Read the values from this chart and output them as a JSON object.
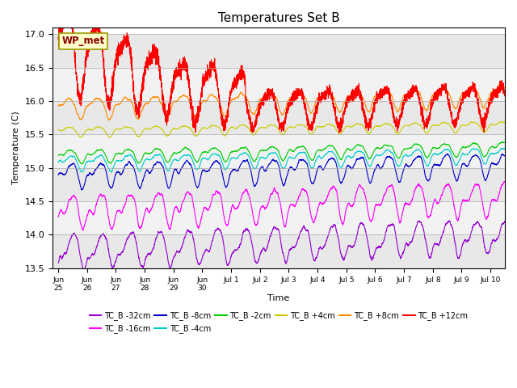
{
  "title": "Temperatures Set B",
  "xlabel": "Time",
  "ylabel": "Temperature (C)",
  "ylim": [
    13.5,
    17.1
  ],
  "annotation": "WP_met",
  "annotation_color": "#8B0000",
  "annotation_bg": "#FFFFCC",
  "series": [
    {
      "label": "TC_B -32cm",
      "color": "#9400D3",
      "base": 13.75,
      "amplitude": 0.22,
      "trend": 0.22,
      "phase": -1.5,
      "amp2": 0.08,
      "phase2": 0.5
    },
    {
      "label": "TC_B -16cm",
      "color": "#FF00FF",
      "base": 14.35,
      "amplitude": 0.2,
      "trend": 0.2,
      "phase": -1.2,
      "amp2": 0.1,
      "phase2": 0.8
    },
    {
      "label": "TC_B -8cm",
      "color": "#0000CD",
      "base": 14.9,
      "amplitude": 0.14,
      "trend": 0.15,
      "phase": -0.9,
      "amp2": 0.08,
      "phase2": 1.0
    },
    {
      "label": "TC_B -4cm",
      "color": "#00CCCC",
      "base": 15.08,
      "amplitude": 0.09,
      "trend": 0.12,
      "phase": -0.7,
      "amp2": 0.05,
      "phase2": 1.2
    },
    {
      "label": "TC_B -2cm",
      "color": "#00CC00",
      "base": 15.18,
      "amplitude": 0.08,
      "trend": 0.12,
      "phase": -0.6,
      "amp2": 0.04,
      "phase2": 1.3
    },
    {
      "label": "TC_B +4cm",
      "color": "#CCCC00",
      "base": 15.55,
      "amplitude": 0.06,
      "trend": 0.08,
      "phase": -0.4,
      "amp2": 0.03,
      "phase2": 1.5
    },
    {
      "label": "TC_B +8cm",
      "color": "#FF8C00",
      "base": 15.9,
      "amplitude": 0.14,
      "trend": 0.2,
      "phase": -0.3,
      "amp2": 0.05,
      "phase2": 1.6
    },
    {
      "label": "TC_B +12cm",
      "color": "#FF0000",
      "base": 16.6,
      "amplitude": 0.55,
      "trend": -0.1,
      "phase": -0.2,
      "amp2": 0.15,
      "phase2": 1.8
    }
  ],
  "xtick_labels": [
    "Jun",
    "25Jun",
    "26Jun",
    "27Jun",
    "28Jun",
    "29Jun",
    "30",
    "Jul 1",
    "Jul 2",
    "Jul 3",
    "Jul 4",
    "Jul 5",
    "Jul 6",
    "Jul 7",
    "Jul 8",
    "Jul 9",
    "Jul 10"
  ],
  "n_points": 4000,
  "background_color": "#FFFFFF",
  "linewidth": 0.8,
  "band_colors": [
    "#E8E8E8",
    "#F2F2F2"
  ],
  "band_edges": [
    13.5,
    14.0,
    14.5,
    15.0,
    15.5,
    16.0,
    16.5,
    17.0
  ]
}
